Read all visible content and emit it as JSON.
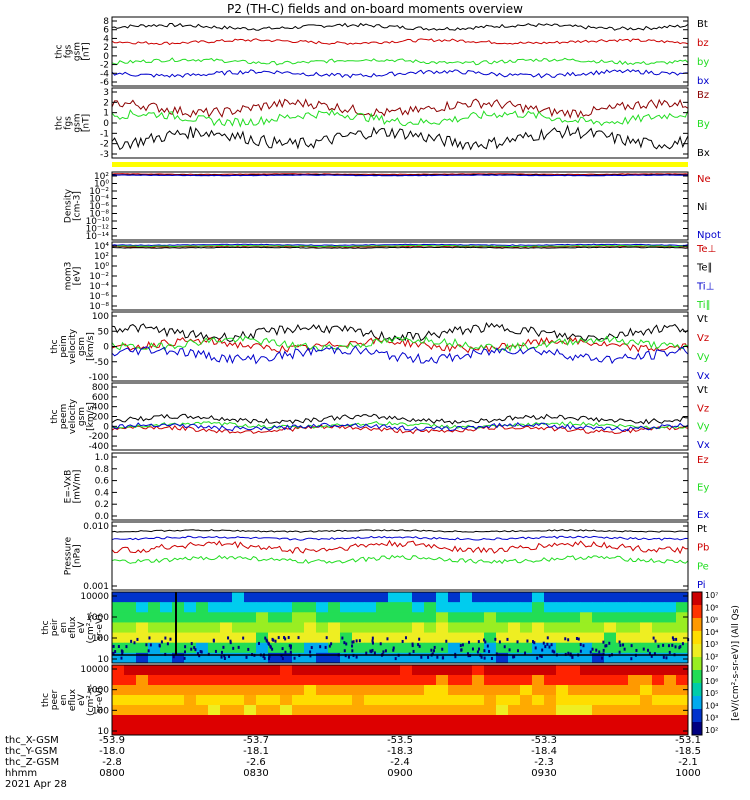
{
  "title": "P2 (TH-C) fields and on-board moments overview",
  "colors": {
    "black": "#000000",
    "red": "#cc0000",
    "green": "#22dd22",
    "blue": "#0000cc",
    "darkred": "#8b0000",
    "yellow": "#ffff00"
  },
  "chart_data": {
    "type": "line",
    "title": "P2 (TH-C) fields and on-board moments overview",
    "date": "2021 Apr 28",
    "x_ticks_hhmm": [
      "0800",
      "0830",
      "0900",
      "0930",
      "1000"
    ],
    "orbit_rows": [
      {
        "label": "thc_X-GSM",
        "values": [
          "-53.9",
          "-53.7",
          "-53.5",
          "-53.3",
          "-53.1"
        ]
      },
      {
        "label": "thc_Y-GSM",
        "values": [
          "-18.0",
          "-18.1",
          "-18.3",
          "-18.4",
          "-18.5"
        ]
      },
      {
        "label": "thc_Z-GSM",
        "values": [
          "-2.8",
          "-2.6",
          "-2.4",
          "-2.3",
          "-2.1"
        ]
      },
      {
        "label": "hhmm",
        "values": [
          "0800",
          "0830",
          "0900",
          "0930",
          "1000"
        ]
      }
    ],
    "panels": [
      {
        "id": "fgs",
        "ylabel": [
          "thc",
          "fgs",
          "gsm",
          "[nT]"
        ],
        "yticks": [
          "8",
          "6",
          "4",
          "2",
          "0",
          "-2",
          "-4",
          "-6"
        ],
        "ylim": [
          -6,
          8
        ],
        "series": [
          {
            "name": "Bt",
            "color": "#000000",
            "base": 6,
            "amp": 0.6
          },
          {
            "name": "bz",
            "color": "#cc0000",
            "base": 3,
            "amp": 0.5
          },
          {
            "name": "by",
            "color": "#22dd22",
            "base": -1,
            "amp": 0.6
          },
          {
            "name": "bx",
            "color": "#0000cc",
            "base": -3.5,
            "amp": 0.7
          }
        ]
      },
      {
        "id": "fgs_dsl",
        "ylabel": [
          "thc",
          "fgs",
          "gsm",
          "[nT]"
        ],
        "yticks": [
          "3",
          "2",
          "1",
          "0",
          "-1",
          "-2",
          "-3"
        ],
        "ylim": [
          -3.5,
          3.5
        ],
        "series": [
          {
            "name": "Bz",
            "color": "#8b0000",
            "base": 1.5,
            "amp": 0.8
          },
          {
            "name": "By",
            "color": "#22dd22",
            "base": 0.5,
            "amp": 0.7
          },
          {
            "name": "Bx",
            "color": "#000000",
            "base": -1.5,
            "amp": 1.0
          }
        ]
      },
      {
        "id": "density",
        "ylabel": [
          "Density",
          "[cm-3]"
        ],
        "yticks": [
          "10²",
          "10⁰",
          "10⁻²",
          "10⁻⁴",
          "10⁻⁶",
          "10⁻⁸",
          "10⁻¹⁰",
          "10⁻¹²",
          "10⁻¹⁴"
        ],
        "ylim": [
          -14,
          2
        ],
        "series": [
          {
            "name": "Ne",
            "color": "#cc0000",
            "base": 1.5,
            "amp": 0.1
          },
          {
            "name": "Ni",
            "color": "#000000",
            "base": 1.3,
            "amp": 0.1
          },
          {
            "name": "Npot",
            "color": "#0000cc",
            "base": 1.2,
            "amp": 0.1
          }
        ]
      },
      {
        "id": "temperature",
        "ylabel": [
          "mom3",
          "[eV]"
        ],
        "yticks": [
          "10⁴",
          "10²",
          "10⁰",
          "10⁻²",
          "10⁻⁴",
          "10⁻⁶",
          "10⁻⁸"
        ],
        "ylim": [
          -8,
          4
        ],
        "series": [
          {
            "name": "Te⊥",
            "color": "#cc0000",
            "base": 3.2,
            "amp": 0.1
          },
          {
            "name": "Te∥",
            "color": "#000000",
            "base": 3.0,
            "amp": 0.1
          },
          {
            "name": "Ti⊥",
            "color": "#0000cc",
            "base": 3.5,
            "amp": 0.1
          },
          {
            "name": "Ti∥",
            "color": "#22dd22",
            "base": 3.3,
            "amp": 0.1
          }
        ]
      },
      {
        "id": "peim_velocity",
        "ylabel": [
          "thc",
          "peim",
          "velocity",
          "gsm",
          "[km/s]"
        ],
        "yticks": [
          "100",
          "50",
          "0",
          "-50",
          "-100"
        ],
        "ylim": [
          -110,
          110
        ],
        "series": [
          {
            "name": "Vt",
            "color": "#000000",
            "base": 45,
            "amp": 25
          },
          {
            "name": "Vz",
            "color": "#cc0000",
            "base": 5,
            "amp": 20
          },
          {
            "name": "Vy",
            "color": "#22dd22",
            "base": 10,
            "amp": 20
          },
          {
            "name": "Vx",
            "color": "#0000cc",
            "base": -25,
            "amp": 25
          }
        ]
      },
      {
        "id": "peem_velocity",
        "ylabel": [
          "thc",
          "peem",
          "velocity",
          "gsm",
          "[km/s]"
        ],
        "yticks": [
          "800",
          "600",
          "400",
          "200",
          "0",
          "-200",
          "-400"
        ],
        "ylim": [
          -450,
          850
        ],
        "series": [
          {
            "name": "Vt",
            "color": "#000000",
            "base": 150,
            "amp": 80
          },
          {
            "name": "Vz",
            "color": "#cc0000",
            "base": -50,
            "amp": 70
          },
          {
            "name": "Vy",
            "color": "#22dd22",
            "base": 30,
            "amp": 60
          },
          {
            "name": "Vx",
            "color": "#0000cc",
            "base": 0,
            "amp": 70
          }
        ]
      },
      {
        "id": "efield",
        "ylabel": [
          "E=-VxB",
          "[mV/m]"
        ],
        "yticks": [
          "1.0",
          "0.8",
          "0.6",
          "0.4",
          "0.2",
          "0.0"
        ],
        "ylim": [
          0,
          1
        ],
        "series": [
          {
            "name": "Ez",
            "color": "#cc0000"
          },
          {
            "name": "Ey",
            "color": "#22dd22"
          },
          {
            "name": "Ex",
            "color": "#0000cc"
          }
        ]
      },
      {
        "id": "pressure",
        "ylabel": [
          "Pressure",
          "[nPa]"
        ],
        "yticks": [
          "0.010",
          "0.001"
        ],
        "ylim": [
          -3.1,
          -1.2
        ],
        "series": [
          {
            "name": "Pt",
            "color": "#000000",
            "base": -1.45,
            "amp": 0.03
          },
          {
            "name": "Pb",
            "color": "#cc0000",
            "base": -1.9,
            "amp": 0.15
          },
          {
            "name": "Pe",
            "color": "#22dd22",
            "base": -2.25,
            "amp": 0.1
          },
          {
            "name": "Pi",
            "color": "#0000cc",
            "base": -1.65,
            "amp": 0.05
          }
        ]
      },
      {
        "id": "peir_spectrogram",
        "type": "heatmap",
        "ylabel": [
          "thc",
          "peir",
          "en",
          "eflux",
          "eV",
          "(cm²-s-",
          "sr-eV)"
        ],
        "yticks": [
          "10000",
          "1000",
          "100",
          "10"
        ]
      },
      {
        "id": "peer_spectrogram",
        "type": "heatmap",
        "ylabel": [
          "thc",
          "peer",
          "en",
          "eflux",
          "eV",
          "(cm²-s-",
          "sr-eV)"
        ],
        "yticks": [
          "10000",
          "1000",
          "100",
          "10"
        ]
      }
    ],
    "colorbar": {
      "ticks": [
        "10⁷",
        "10⁶",
        "10⁵",
        "10⁴",
        "10³",
        "10²",
        "10⁷",
        "10⁶",
        "10⁵",
        "10⁴",
        "10³",
        "10²"
      ],
      "label": "[eV/(cm²-s-sr-eV)] (All Qs)"
    }
  }
}
